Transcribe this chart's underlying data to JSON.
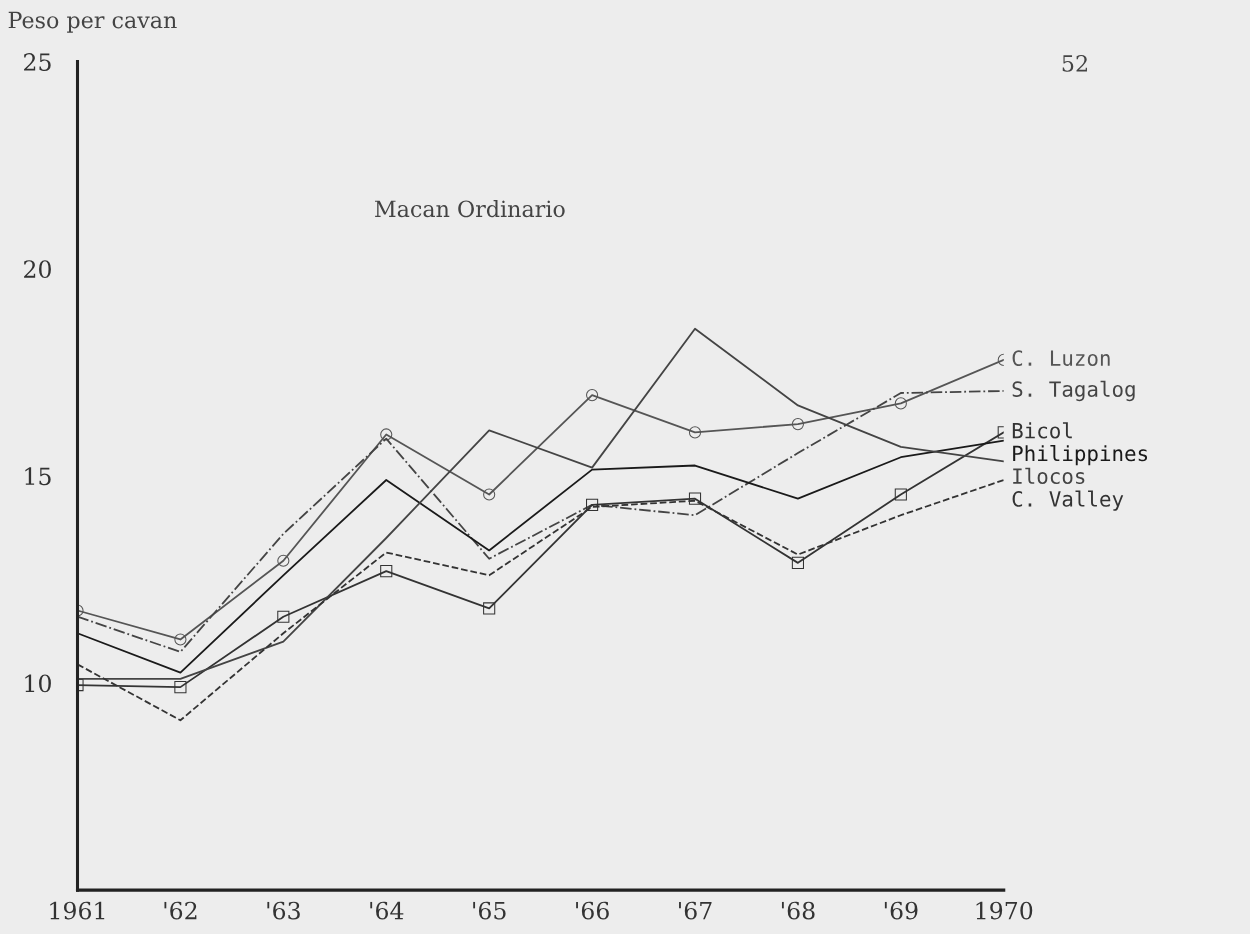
{
  "chart_data": {
    "type": "line",
    "title": "Macan Ordinario",
    "ylabel": "Peso per cavan",
    "x": [
      1961,
      1962,
      1963,
      1964,
      1965,
      1966,
      1967,
      1968,
      1969,
      1970
    ],
    "xlim": [
      1961,
      1970
    ],
    "xticks": [
      {
        "value": 1961,
        "label": "1961"
      },
      {
        "value": 1962,
        "label": "'62"
      },
      {
        "value": 1963,
        "label": "'63"
      },
      {
        "value": 1964,
        "label": "'64"
      },
      {
        "value": 1965,
        "label": "'65"
      },
      {
        "value": 1966,
        "label": "'66"
      },
      {
        "value": 1967,
        "label": "'67"
      },
      {
        "value": 1968,
        "label": "'68"
      },
      {
        "value": 1969,
        "label": "'69"
      },
      {
        "value": 1970,
        "label": "1970"
      }
    ],
    "ylim": [
      5,
      25
    ],
    "yticks": [
      10,
      15,
      20,
      25
    ],
    "grid": false,
    "legend": false,
    "annotations": [
      "52"
    ],
    "series": [
      {
        "name": "C. Luzon",
        "color": "#555555",
        "marker": "circle",
        "line_style": "solid",
        "values": [
          11.75,
          11.05,
          12.95,
          16.0,
          14.55,
          16.95,
          16.05,
          16.25,
          16.75,
          17.8
        ]
      },
      {
        "name": "S. Tagalog",
        "color": "#444444",
        "marker": "none",
        "line_style": "dashdot",
        "values": [
          11.6,
          10.75,
          13.6,
          15.9,
          13.0,
          14.3,
          14.05,
          15.55,
          17.0,
          17.05
        ]
      },
      {
        "name": "Bicol",
        "color": "#333333",
        "marker": "square",
        "line_style": "solid",
        "values": [
          9.95,
          9.9,
          11.6,
          12.7,
          11.8,
          14.3,
          14.45,
          12.9,
          14.55,
          16.05
        ]
      },
      {
        "name": "Philippines",
        "color": "#1a1a1a",
        "marker": "none",
        "line_style": "solid",
        "values": [
          11.2,
          10.25,
          12.6,
          14.9,
          13.2,
          15.15,
          15.25,
          14.45,
          15.45,
          15.85
        ]
      },
      {
        "name": "Ilocos",
        "color": "#444444",
        "marker": "none",
        "line_style": "solid",
        "values": [
          10.1,
          10.1,
          11.0,
          13.5,
          16.1,
          15.2,
          18.55,
          16.7,
          15.7,
          15.35
        ]
      },
      {
        "name": "C. Valley",
        "color": "#333333",
        "marker": "none",
        "line_style": "dashed",
        "values": [
          10.45,
          9.1,
          11.2,
          13.15,
          12.6,
          14.25,
          14.4,
          13.1,
          14.05,
          14.9
        ]
      }
    ]
  }
}
